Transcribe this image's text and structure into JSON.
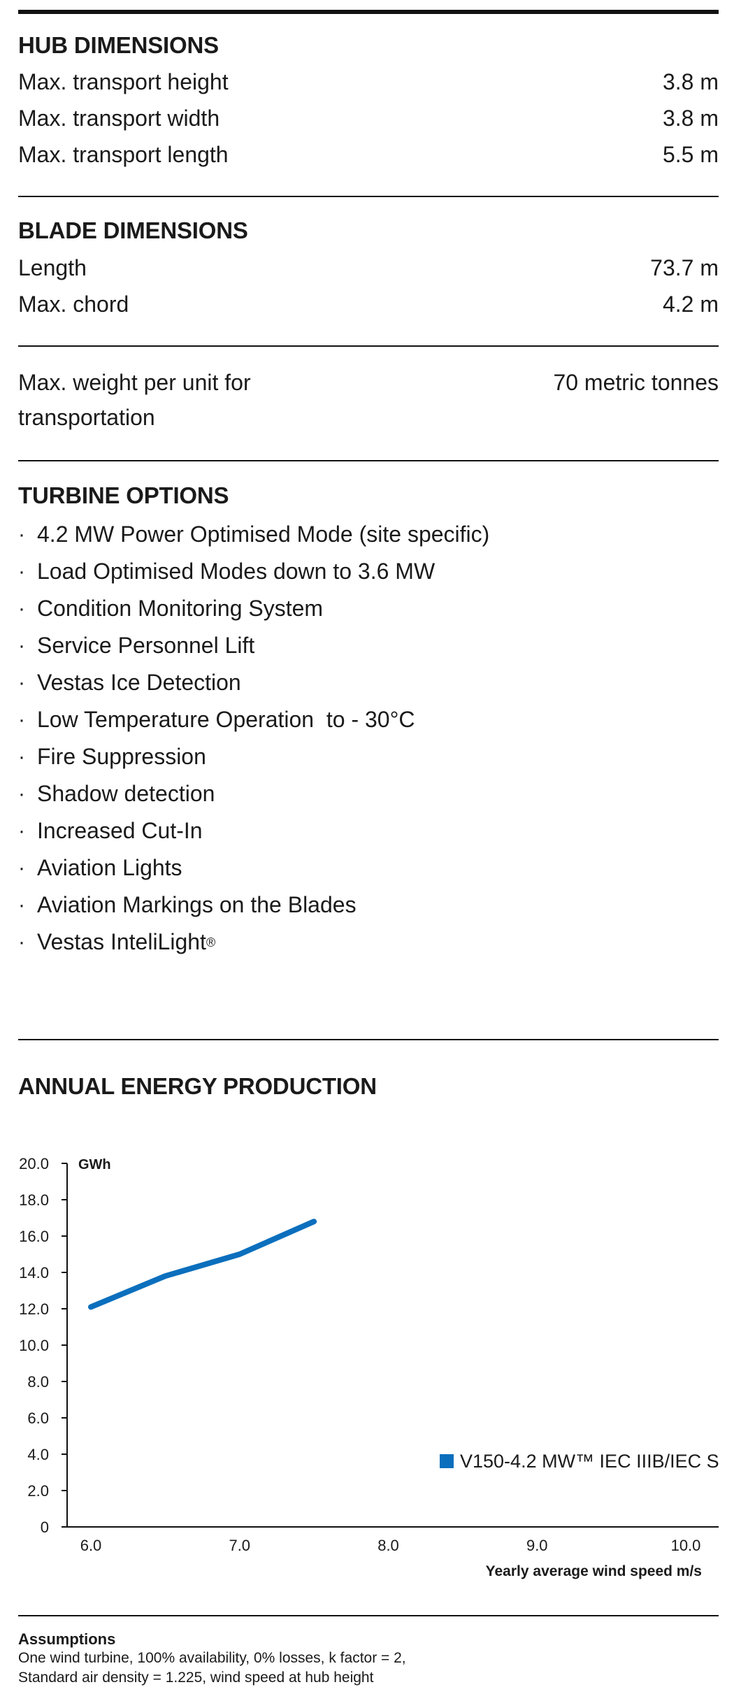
{
  "hub": {
    "heading": "HUB DIMENSIONS",
    "rows": [
      {
        "label": "Max. transport height",
        "value": "3.8 m"
      },
      {
        "label": "Max. transport width",
        "value": "3.8 m"
      },
      {
        "label": "Max. transport length",
        "value": "5.5 m"
      }
    ]
  },
  "blade": {
    "heading": "BLADE DIMENSIONS",
    "rows": [
      {
        "label": "Length",
        "value": "73.7 m"
      },
      {
        "label": "Max. chord",
        "value": "4.2 m"
      }
    ]
  },
  "weight": {
    "label": "Max. weight per unit for transportation",
    "value": "70 metric tonnes"
  },
  "options": {
    "heading": "TURBINE OPTIONS",
    "bullet": "·",
    "items": [
      "4.2 MW Power Optimised Mode (site specific)",
      "Load Optimised Modes down to 3.6 MW",
      "Condition Monitoring System",
      "Service Personnel Lift",
      "Vestas Ice Detection",
      "Low Temperature Operation  to - 30°C",
      "Fire Suppression",
      "Shadow detection",
      "Increased Cut-In",
      "Aviation Lights",
      "Aviation Markings on the Blades",
      "Vestas InteliLight"
    ],
    "last_item_mark": "®"
  },
  "aep": {
    "heading": "ANNUAL ENERGY PRODUCTION"
  },
  "chart_data": {
    "type": "line",
    "title": "",
    "ylabel": "GWh",
    "xlabel": "Yearly average wind speed m/s",
    "ylim": [
      0,
      20
    ],
    "xlim": [
      6.0,
      10.0
    ],
    "y_ticks": [
      "0",
      "2.0",
      "4.0",
      "6.0",
      "8.0",
      "10.0",
      "12.0",
      "14.0",
      "16.0",
      "18.0",
      "20.0"
    ],
    "x_ticks": [
      "6.0",
      "7.0",
      "8.0",
      "9.0",
      "10.0"
    ],
    "grid": false,
    "legend_position": "bottom-right",
    "series": [
      {
        "name": "V150-4.2 MW™ IEC IIIB/IEC S",
        "color": "#0b6fbd",
        "x": [
          6.0,
          6.5,
          7.0,
          7.5
        ],
        "y": [
          12.1,
          13.8,
          15.0,
          16.8
        ]
      }
    ]
  },
  "assumptions": {
    "title": "Assumptions",
    "lines": [
      "One wind turbine, 100% availability, 0% losses, k factor = 2,",
      "Standard air density = 1.225, wind speed at hub height"
    ]
  }
}
